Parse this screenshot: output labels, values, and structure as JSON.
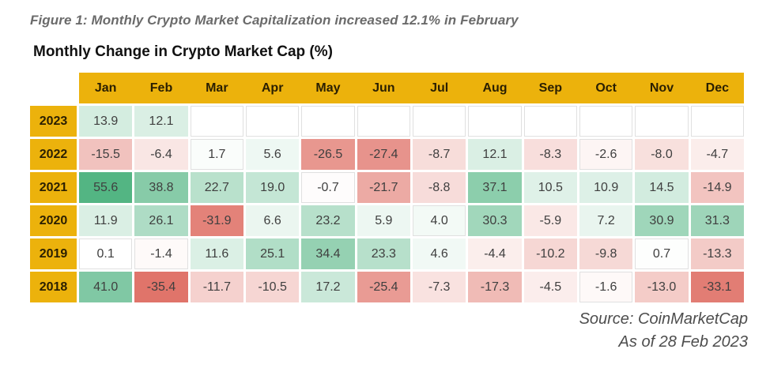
{
  "header": {
    "figure_caption": "Figure 1: Monthly Crypto Market Capitalization increased 12.1% in February",
    "table_title": "Monthly Change in Crypto Market Cap (%)"
  },
  "footer": {
    "source": "Source: CoinMarketCap",
    "as_of": "As of 28 Feb 2023"
  },
  "colors": {
    "accent_gold": "#ecb20c",
    "positive_green": "#53b583",
    "negative_red": "#e0746a",
    "neutral_white": "#ffffff",
    "cell_text": "#3f3f3f",
    "header_text": "#2a1f02",
    "caption_gray": "#6b6b6b",
    "faint_border": "#e0e0e0"
  },
  "chart_data": {
    "type": "heatmap",
    "title": "Monthly Change in Crypto Market Cap (%)",
    "subtitle": "Figure 1: Monthly Crypto Market Capitalization increased 12.1% in February",
    "columns": [
      "Jan",
      "Feb",
      "Mar",
      "Apr",
      "May",
      "Jun",
      "Jul",
      "Aug",
      "Sep",
      "Oct",
      "Nov",
      "Dec"
    ],
    "rows": [
      "2023",
      "2022",
      "2021",
      "2020",
      "2019",
      "2018"
    ],
    "values": [
      [
        13.9,
        12.1,
        null,
        null,
        null,
        null,
        null,
        null,
        null,
        null,
        null,
        null
      ],
      [
        -15.5,
        -6.4,
        1.7,
        5.6,
        -26.5,
        -27.4,
        -8.7,
        12.1,
        -8.3,
        -2.6,
        -8.0,
        -4.7
      ],
      [
        55.6,
        38.8,
        22.7,
        19.0,
        -0.7,
        -21.7,
        -8.8,
        37.1,
        10.5,
        10.9,
        14.5,
        -14.9
      ],
      [
        11.9,
        26.1,
        -31.9,
        6.6,
        23.2,
        5.9,
        4.0,
        30.3,
        -5.9,
        7.2,
        30.9,
        31.3
      ],
      [
        0.1,
        -1.4,
        11.6,
        25.1,
        34.4,
        23.3,
        4.6,
        -4.4,
        -10.2,
        -9.8,
        0.7,
        -13.3
      ],
      [
        41.0,
        -35.4,
        -11.7,
        -10.5,
        17.2,
        -25.4,
        -7.3,
        -17.3,
        -4.5,
        -1.6,
        -13.0,
        -33.1
      ]
    ],
    "value_format": "one-decimal",
    "scale": {
      "positive_max": 55.6,
      "negative_max": -35.4
    },
    "grid": false,
    "legend_position": "none",
    "source": "Source: CoinMarketCap",
    "as_of": "As of 28 Feb 2023"
  }
}
